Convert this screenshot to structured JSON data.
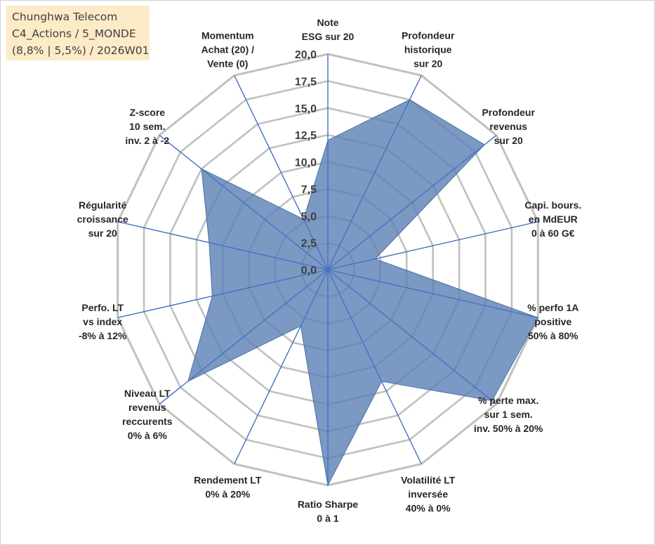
{
  "title_box": {
    "line1": "Chunghwa Telecom",
    "line2": "C4_Actions / 5_MONDE",
    "line3": "(8,8% | 5,5%) / 2026W01"
  },
  "colors": {
    "fill": "#5b80b4",
    "axis": "#4472c4",
    "grid": "#c0c0c0"
  },
  "chart_data": {
    "type": "radar",
    "title": "",
    "rmin": 0,
    "rmax": 20,
    "ticks": [
      "0,0",
      "2,5",
      "5,0",
      "7,5",
      "10,0",
      "12,5",
      "15,0",
      "17,5",
      "20,0"
    ],
    "axes": [
      {
        "label": [
          "Note",
          "ESG sur 20"
        ],
        "value": 12
      },
      {
        "label": [
          "Profondeur",
          "historique",
          "sur 20"
        ],
        "value": 17.5
      },
      {
        "label": [
          "Profondeur",
          "revenus",
          "sur 20"
        ],
        "value": 18.6
      },
      {
        "label": [
          "Capi. bours.",
          "en MdEUR",
          "0 à 60 G€"
        ],
        "value": 4.5
      },
      {
        "label": [
          "% perfo 1A",
          "positive",
          "50% à 80%"
        ],
        "value": 20
      },
      {
        "label": [
          "% perte max.",
          "sur 1 sem.",
          "inv. 50% à 20%"
        ],
        "value": 19.5
      },
      {
        "label": [
          "Volatilité LT",
          "inversée",
          "40% à 0%"
        ],
        "value": 11.5
      },
      {
        "label": [
          "Ratio Sharpe",
          "0 à 1"
        ],
        "value": 20
      },
      {
        "label": [
          "Rendement LT",
          "0% à 20%"
        ],
        "value": 5.8
      },
      {
        "label": [
          "Niveau LT",
          "revenus",
          "reccurents",
          "0% à 6%"
        ],
        "value": 16.6
      },
      {
        "label": [
          "Perfo. LT",
          "vs index",
          "-8% à 12%"
        ],
        "value": 11
      },
      {
        "label": [
          "Régularité",
          "croissance",
          "sur 20"
        ],
        "value": 11.3
      },
      {
        "label": [
          "Z-score",
          "10 sem.",
          "inv. 2 à -2"
        ],
        "value": 15
      },
      {
        "label": [
          "Momentum",
          "Achat (20) /",
          "Vente (0)"
        ],
        "value": 5.2
      }
    ]
  }
}
